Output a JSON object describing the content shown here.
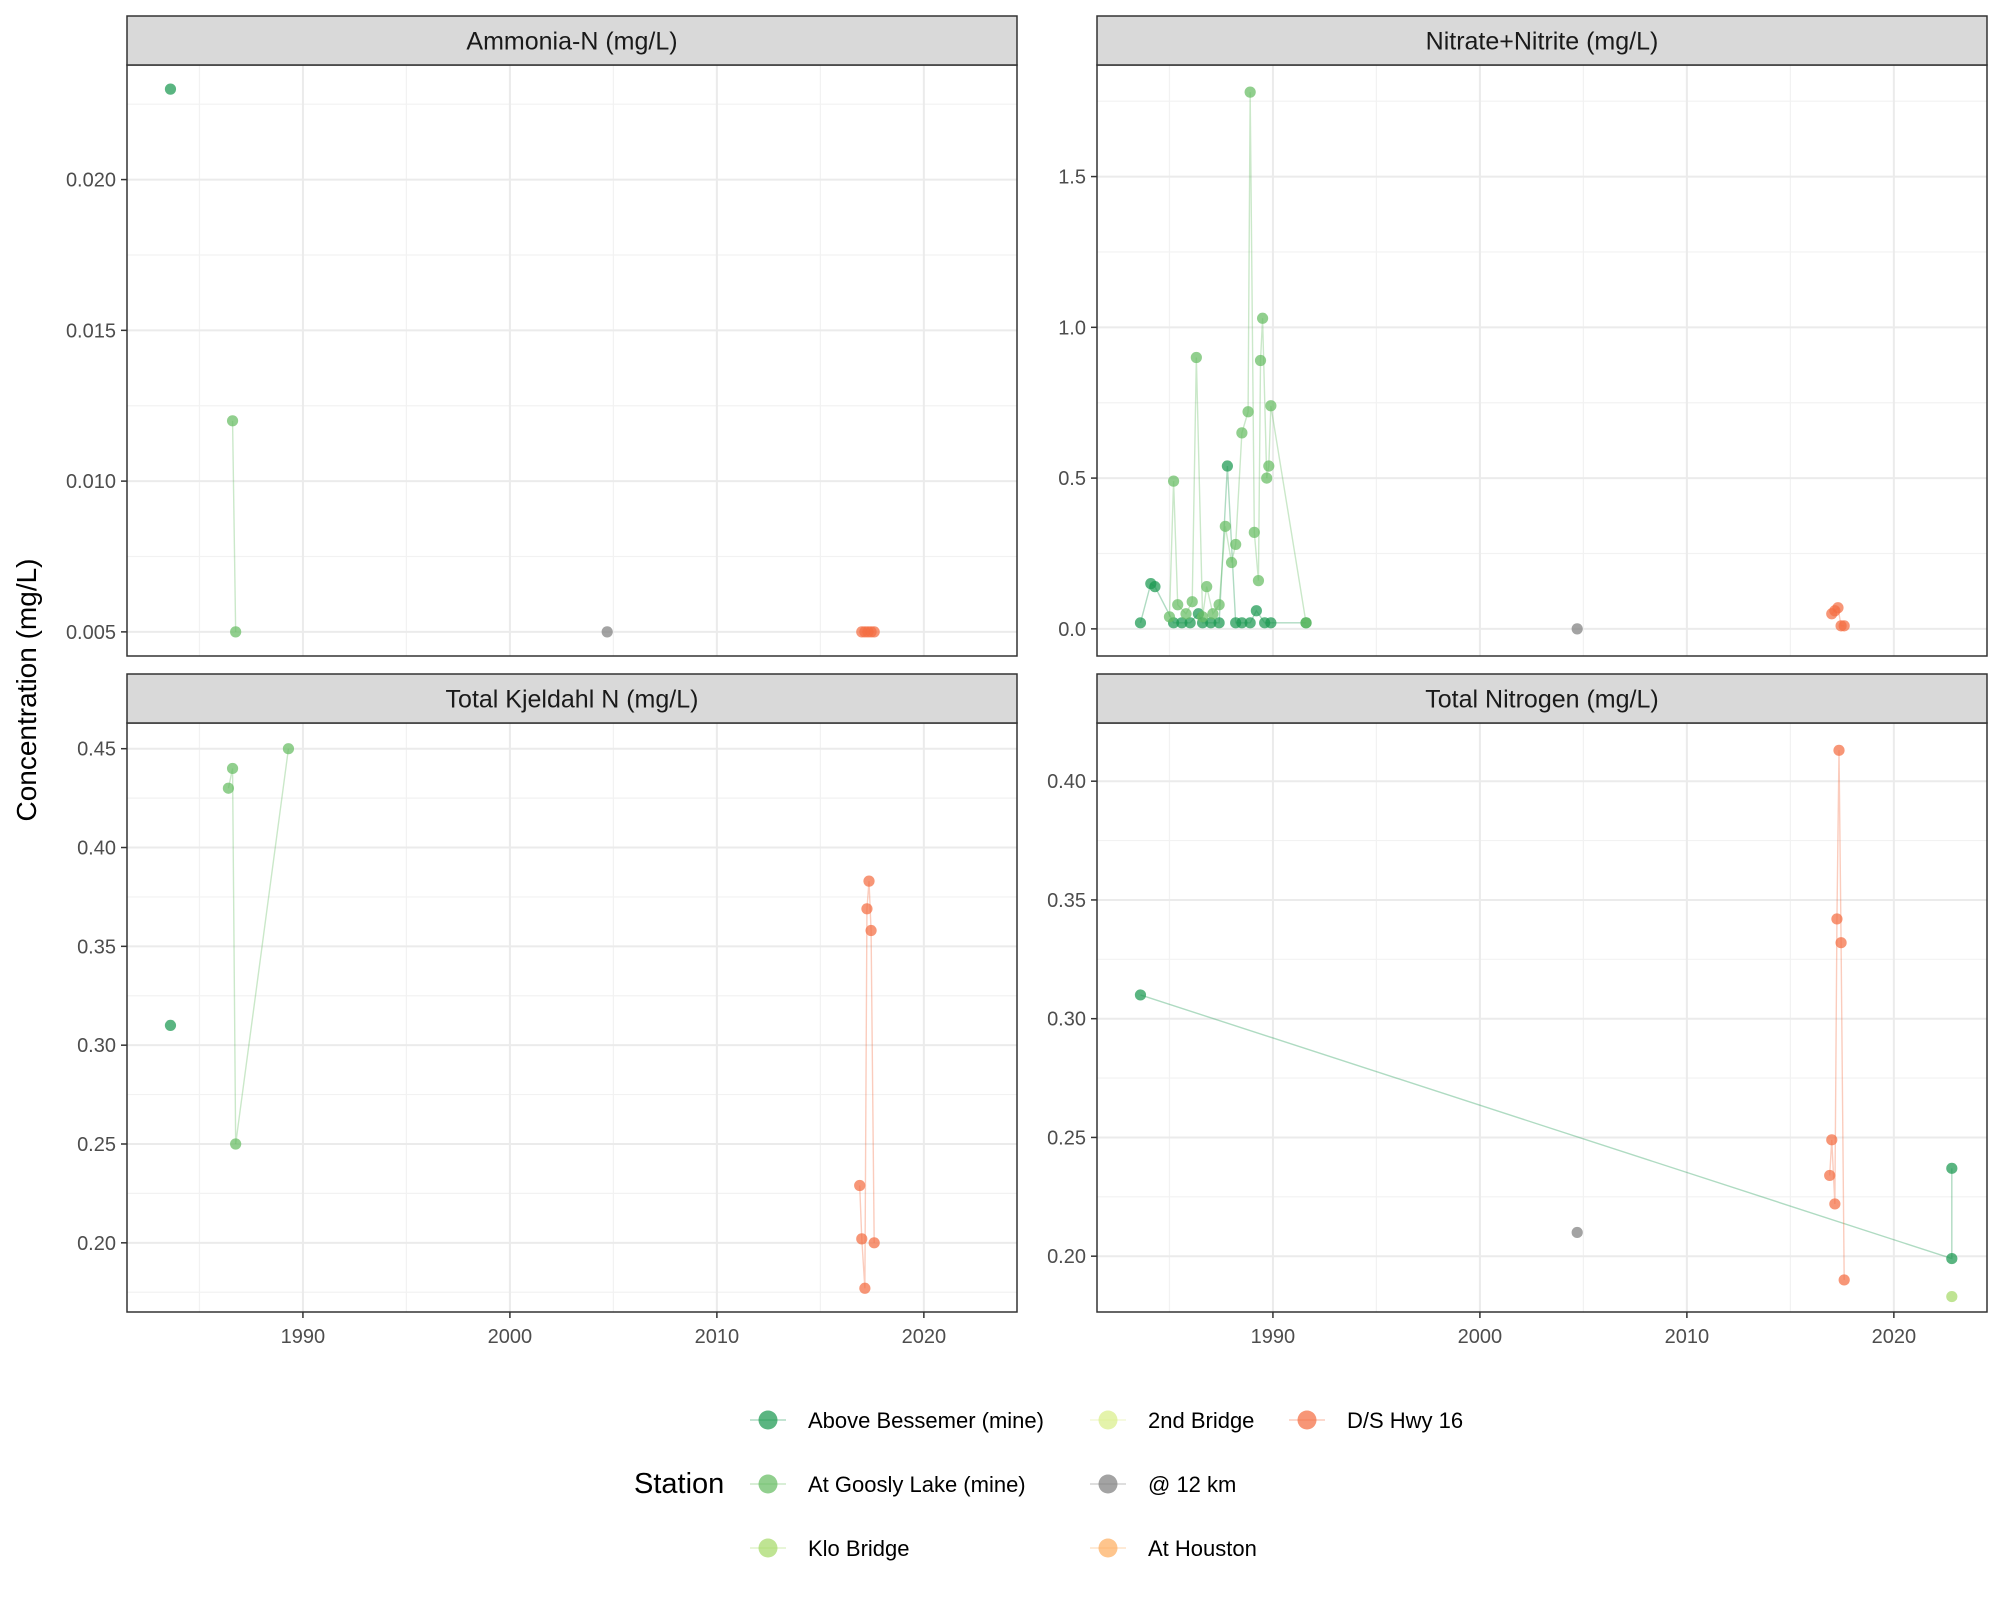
{
  "chart_data": {
    "type": "scatter",
    "facet_layout": "2x2",
    "y_axis_title": "Concentration (mg/L)",
    "shared_x": {
      "range": [
        1981.5,
        2024.5
      ],
      "ticks": [
        1990,
        2000,
        2010,
        2020
      ],
      "tick_labels": [
        "1990",
        "2000",
        "2010",
        "2020"
      ]
    },
    "legend": {
      "title": "Station",
      "position": "bottom",
      "entries": [
        {
          "name": "Above Bessemer (mine)",
          "color": "#1a9850"
        },
        {
          "name": "At Goosly Lake (mine)",
          "color": "#66bd63"
        },
        {
          "name": "Klo Bridge",
          "color": "#a6d96a"
        },
        {
          "name": "2nd Bridge",
          "color": "#d9ef8b"
        },
        {
          "name": "@ 12 km",
          "color": "#7f7f7f"
        },
        {
          "name": "At Houston",
          "color": "#fdae61"
        },
        {
          "name": "D/S Hwy 16",
          "color": "#f46d43"
        }
      ]
    },
    "panels": [
      {
        "title": "Ammonia-N (mg/L)",
        "ylim": [
          0.0042,
          0.0238
        ],
        "y_ticks": [
          0.005,
          0.01,
          0.015,
          0.02
        ],
        "y_tick_labels": [
          "0.005",
          "0.010",
          "0.015",
          "0.020"
        ],
        "series": [
          {
            "name": "Above Bessemer (mine)",
            "points": [
              [
                1983.6,
                0.023
              ]
            ]
          },
          {
            "name": "At Goosly Lake (mine)",
            "points": [
              [
                1986.6,
                0.012
              ],
              [
                1986.75,
                0.005
              ]
            ]
          },
          {
            "name": "@ 12 km",
            "points": [
              [
                2004.7,
                0.005
              ]
            ]
          },
          {
            "name": "D/S Hwy 16",
            "points": [
              [
                2017.0,
                0.005
              ],
              [
                2017.15,
                0.005
              ],
              [
                2017.3,
                0.005
              ],
              [
                2017.45,
                0.005
              ],
              [
                2017.6,
                0.005
              ]
            ]
          }
        ]
      },
      {
        "title": "Nitrate+Nitrite (mg/L)",
        "ylim": [
          -0.09,
          1.87
        ],
        "y_ticks": [
          0.0,
          0.5,
          1.0,
          1.5
        ],
        "y_tick_labels": [
          "0.0",
          "0.5",
          "1.0",
          "1.5"
        ],
        "series": [
          {
            "name": "Above Bessemer (mine)",
            "points": [
              [
                1983.6,
                0.02
              ],
              [
                1984.1,
                0.15
              ],
              [
                1984.3,
                0.14
              ],
              [
                1985.2,
                0.02
              ],
              [
                1985.6,
                0.02
              ],
              [
                1986.0,
                0.02
              ],
              [
                1986.4,
                0.05
              ],
              [
                1986.6,
                0.02
              ],
              [
                1987.0,
                0.02
              ],
              [
                1987.4,
                0.02
              ],
              [
                1987.8,
                0.54
              ],
              [
                1988.2,
                0.02
              ],
              [
                1988.5,
                0.02
              ],
              [
                1988.9,
                0.02
              ],
              [
                1989.2,
                0.06
              ],
              [
                1989.6,
                0.02
              ],
              [
                1989.9,
                0.02
              ],
              [
                1991.6,
                0.02
              ]
            ]
          },
          {
            "name": "At Goosly Lake (mine)",
            "points": [
              [
                1985.0,
                0.04
              ],
              [
                1985.2,
                0.49
              ],
              [
                1985.4,
                0.08
              ],
              [
                1985.8,
                0.05
              ],
              [
                1986.1,
                0.09
              ],
              [
                1986.3,
                0.9
              ],
              [
                1986.6,
                0.04
              ],
              [
                1986.8,
                0.14
              ],
              [
                1987.1,
                0.05
              ],
              [
                1987.4,
                0.08
              ],
              [
                1987.7,
                0.34
              ],
              [
                1988.0,
                0.22
              ],
              [
                1988.2,
                0.28
              ],
              [
                1988.5,
                0.65
              ],
              [
                1988.8,
                0.72
              ],
              [
                1988.9,
                1.78
              ],
              [
                1989.1,
                0.32
              ],
              [
                1989.3,
                0.16
              ],
              [
                1989.4,
                0.89
              ],
              [
                1989.5,
                1.03
              ],
              [
                1989.7,
                0.5
              ],
              [
                1989.8,
                0.54
              ],
              [
                1989.9,
                0.74
              ],
              [
                1991.6,
                0.02
              ]
            ]
          },
          {
            "name": "@ 12 km",
            "points": [
              [
                2004.7,
                0.0
              ]
            ]
          },
          {
            "name": "D/S Hwy 16",
            "points": [
              [
                2017.0,
                0.05
              ],
              [
                2017.15,
                0.06
              ],
              [
                2017.3,
                0.07
              ],
              [
                2017.45,
                0.01
              ],
              [
                2017.6,
                0.01
              ]
            ]
          }
        ]
      },
      {
        "title": "Total Kjeldahl N (mg/L)",
        "ylim": [
          0.165,
          0.463
        ],
        "y_ticks": [
          0.2,
          0.25,
          0.3,
          0.35,
          0.4,
          0.45
        ],
        "y_tick_labels": [
          "0.20",
          "0.25",
          "0.30",
          "0.35",
          "0.40",
          "0.45"
        ],
        "series": [
          {
            "name": "Above Bessemer (mine)",
            "points": [
              [
                1983.6,
                0.31
              ]
            ]
          },
          {
            "name": "At Goosly Lake (mine)",
            "points": [
              [
                1986.4,
                0.43
              ],
              [
                1986.6,
                0.44
              ],
              [
                1986.75,
                0.25
              ],
              [
                1989.3,
                0.45
              ]
            ]
          },
          {
            "name": "D/S Hwy 16",
            "points": [
              [
                2016.9,
                0.229
              ],
              [
                2017.0,
                0.202
              ],
              [
                2017.15,
                0.177
              ],
              [
                2017.25,
                0.369
              ],
              [
                2017.35,
                0.383
              ],
              [
                2017.45,
                0.358
              ],
              [
                2017.6,
                0.2
              ]
            ]
          }
        ]
      },
      {
        "title": "Total Nitrogen (mg/L)",
        "ylim": [
          0.1765,
          0.4245
        ],
        "y_ticks": [
          0.2,
          0.25,
          0.3,
          0.35,
          0.4
        ],
        "y_tick_labels": [
          "0.20",
          "0.25",
          "0.30",
          "0.35",
          "0.40"
        ],
        "series": [
          {
            "name": "Above Bessemer (mine)",
            "points": [
              [
                1983.6,
                0.31
              ],
              [
                2022.8,
                0.199
              ],
              [
                2022.8,
                0.237
              ]
            ]
          },
          {
            "name": "Klo Bridge",
            "points": [
              [
                2022.8,
                0.183
              ]
            ]
          },
          {
            "name": "@ 12 km",
            "points": [
              [
                2004.7,
                0.21
              ]
            ]
          },
          {
            "name": "D/S Hwy 16",
            "points": [
              [
                2016.9,
                0.234
              ],
              [
                2017.0,
                0.249
              ],
              [
                2017.15,
                0.222
              ],
              [
                2017.25,
                0.342
              ],
              [
                2017.35,
                0.413
              ],
              [
                2017.45,
                0.332
              ],
              [
                2017.6,
                0.19
              ]
            ]
          }
        ]
      }
    ]
  }
}
